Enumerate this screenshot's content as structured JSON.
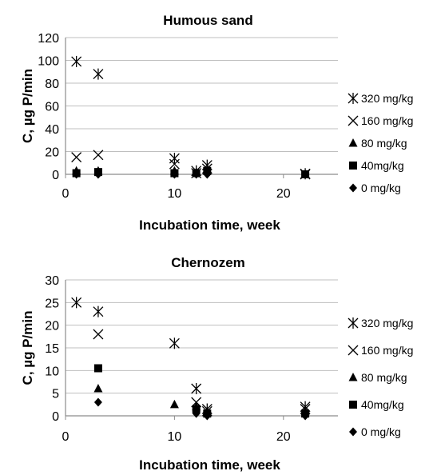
{
  "chart_data": [
    {
      "type": "scatter",
      "title": "Humous sand",
      "xlabel": "Incubation time, week",
      "ylabel": "C, µg P/min",
      "xlim": [
        0,
        25
      ],
      "ylim": [
        0,
        120
      ],
      "xticks": [
        0,
        10,
        20
      ],
      "yticks": [
        0,
        20,
        40,
        60,
        80,
        100,
        120
      ],
      "grid": "horizontal",
      "legend": "right",
      "series": [
        {
          "name": "320 mg/kg",
          "marker": "asterisk",
          "x": [
            1,
            3,
            10,
            12,
            13,
            22
          ],
          "y": [
            99,
            88,
            14,
            3,
            8,
            0.5
          ]
        },
        {
          "name": "160 mg/kg",
          "marker": "x",
          "x": [
            1,
            3,
            10,
            12,
            13,
            22
          ],
          "y": [
            15,
            17,
            9,
            1,
            5,
            0
          ]
        },
        {
          "name": "80 mg/kg",
          "marker": "triangle",
          "x": [
            1,
            3,
            10,
            12,
            13,
            22
          ],
          "y": [
            3,
            3,
            3,
            2,
            3,
            0
          ]
        },
        {
          "name": "40mg/kg",
          "marker": "square",
          "x": [
            1,
            3,
            10,
            12,
            13,
            22
          ],
          "y": [
            1,
            2,
            1,
            1,
            3,
            0
          ]
        },
        {
          "name": "0 mg/kg",
          "marker": "diamond",
          "x": [
            1,
            3,
            10,
            12,
            13,
            22
          ],
          "y": [
            0,
            0,
            0,
            0,
            0,
            0
          ]
        }
      ]
    },
    {
      "type": "scatter",
      "title": "Chernozem",
      "xlabel": "Incubation time, week",
      "ylabel": "C, µg P/min",
      "xlim": [
        0,
        25
      ],
      "ylim": [
        0,
        30
      ],
      "xticks": [
        0,
        10,
        20
      ],
      "yticks": [
        0,
        5,
        10,
        15,
        20,
        25,
        30
      ],
      "grid": "horizontal",
      "legend": "right",
      "series": [
        {
          "name": "320 mg/kg",
          "marker": "asterisk",
          "x": [
            1,
            3,
            10,
            12,
            13,
            22
          ],
          "y": [
            25,
            23,
            16,
            6,
            1.5,
            2
          ]
        },
        {
          "name": "160 mg/kg",
          "marker": "x",
          "x": [
            3,
            12,
            13,
            22
          ],
          "y": [
            18,
            3,
            1,
            1.5
          ]
        },
        {
          "name": "80 mg/kg",
          "marker": "triangle",
          "x": [
            3,
            10,
            12,
            13,
            22
          ],
          "y": [
            6,
            2.5,
            2,
            1,
            1
          ]
        },
        {
          "name": "40mg/kg",
          "marker": "square",
          "x": [
            3,
            12,
            13,
            22
          ],
          "y": [
            10.5,
            1.5,
            0.5,
            0.5
          ]
        },
        {
          "name": "0 mg/kg",
          "marker": "diamond",
          "x": [
            3,
            12,
            13,
            22
          ],
          "y": [
            3,
            0.5,
            0,
            0
          ]
        }
      ]
    }
  ]
}
